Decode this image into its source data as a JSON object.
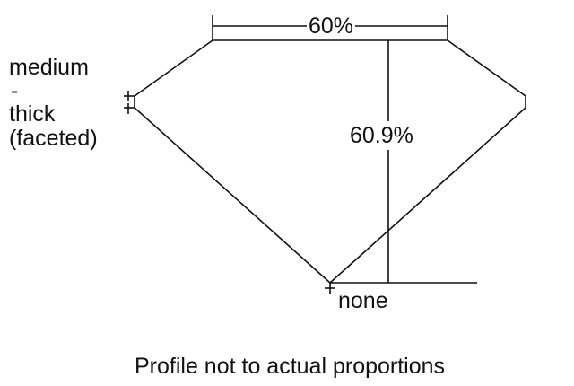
{
  "diagram": {
    "table_percent": "60%",
    "depth_percent": "60.9%",
    "girdle_label": [
      "medium",
      "-",
      "thick",
      "(faceted)"
    ],
    "culet_label": "none",
    "footnote": "Profile not to actual proportions",
    "line_color": "#111111"
  }
}
